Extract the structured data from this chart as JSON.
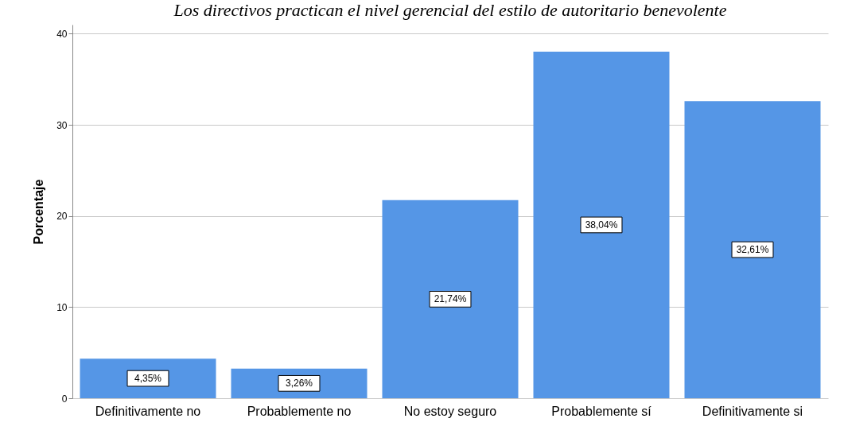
{
  "chart_data": {
    "type": "bar",
    "title": "Los directivos practican el nivel gerencial del estilo de autoritario benevolente",
    "ylabel": "Porcentaje",
    "categories": [
      "Definitivamente no",
      "Probablemente no",
      "No estoy seguro",
      "Probablemente sí",
      "Definitivamente si"
    ],
    "values": [
      4.35,
      3.26,
      21.74,
      38.04,
      32.61
    ],
    "value_labels": [
      "4,35%",
      "3,26%",
      "21,74%",
      "38,04%",
      "32,61%"
    ],
    "color": "#5596e6",
    "ylim": [
      0,
      41
    ],
    "yticks": [
      0,
      10,
      20,
      30,
      40
    ],
    "grid": "y"
  }
}
